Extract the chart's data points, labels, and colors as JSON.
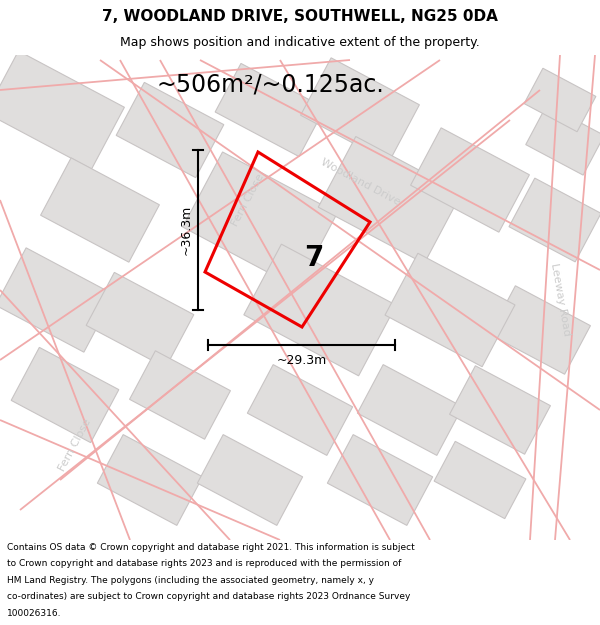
{
  "title": "7, WOODLAND DRIVE, SOUTHWELL, NG25 0DA",
  "subtitle": "Map shows position and indicative extent of the property.",
  "area_label": "~506m²/~0.125ac.",
  "property_number": "7",
  "dim_width": "~29.3m",
  "dim_height": "~36.3m",
  "footer_lines": [
    "Contains OS data © Crown copyright and database right 2021. This information is subject",
    "to Crown copyright and database rights 2023 and is reproduced with the permission of",
    "HM Land Registry. The polygons (including the associated geometry, namely x, y",
    "co-ordinates) are subject to Crown copyright and database rights 2023 Ordnance Survey",
    "100026316."
  ],
  "bg_color": "#f5f5f5",
  "road_line_color": "#f0aaaa",
  "block_color": "#e0dedd",
  "block_border_color": "#c8c4c4",
  "property_color": "#ee0000",
  "road_label_color": "#cccccc",
  "title_fontsize": 11,
  "subtitle_fontsize": 9,
  "area_fontsize": 17,
  "number_fontsize": 20,
  "dim_fontsize": 9,
  "road_label_fontsize": 8,
  "footer_fontsize": 6.5
}
